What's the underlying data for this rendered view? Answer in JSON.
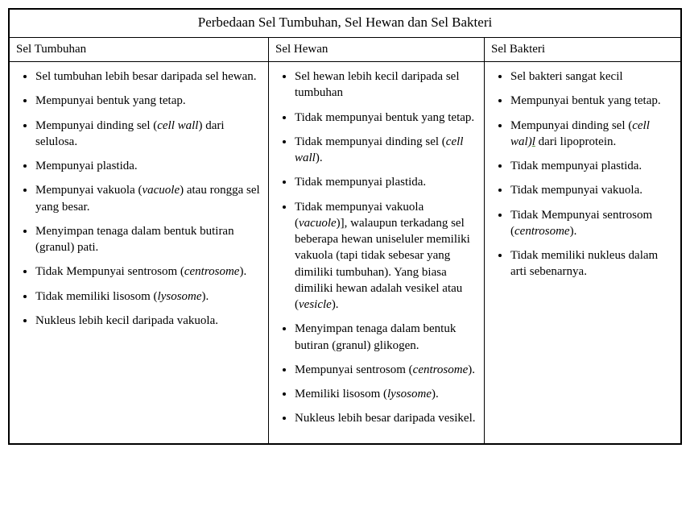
{
  "title": "Perbedaan Sel Tumbuhan, Sel Hewan dan Sel Bakteri",
  "columns": {
    "col1": {
      "header": "Sel Tumbuhan"
    },
    "col2": {
      "header": "Sel Hewan"
    },
    "col3": {
      "header": "Sel Bakteri"
    }
  },
  "list1": {
    "i0a": "Sel tumbuhan lebih besar daripada sel hewan.",
    "i1a": "Mempunyai bentuk yang tetap.",
    "i2a": "Mempunyai dinding sel (",
    "i2b": "cell wall",
    "i2c": ") dari selulosa.",
    "i3a": "Mempunyai plastida.",
    "i4a": "Mempunyai vakuola (",
    "i4b": "vacuole",
    "i4c": ") atau rongga sel yang besar.",
    "i5a": "Menyimpan tenaga dalam bentuk butiran (granul) pati.",
    "i6a": "Tidak Mempunyai sentrosom (",
    "i6b": "centrosome",
    "i6c": ").",
    "i7a": "Tidak memiliki lisosom (",
    "i7b": "lysosome",
    "i7c": ").",
    "i8a": "Nukleus lebih kecil daripada vakuola."
  },
  "list2": {
    "i0a": "Sel hewan lebih kecil daripada sel tumbuhan",
    "i1a": "Tidak mempunyai bentuk yang tetap.",
    "i2a": "Tidak mempunyai dinding sel (",
    "i2b": "cell wall",
    "i2c": ").",
    "i3a": "Tidak mempunyai plastida.",
    "i4a": "Tidak mempunyai vakuola (",
    "i4b": "vacuole",
    "i4c": ")], walaupun terkadang sel beberapa hewan uniseluler memiliki vakuola (tapi tidak sebesar yang dimiliki tumbuhan). Yang biasa dimiliki hewan adalah vesikel atau (",
    "i4d": "vesicle",
    "i4e": ").",
    "i5a": "Menyimpan tenaga dalam bentuk butiran (granul) glikogen.",
    "i6a": "Mempunyai sentrosom (",
    "i6b": "centrosome",
    "i6c": ").",
    "i7a": "Memiliki lisosom (",
    "i7b": "lysosome",
    "i7c": ").",
    "i8a": "Nukleus lebih besar daripada vesikel."
  },
  "list3": {
    "i0a": "Sel bakteri sangat kecil",
    "i1a": "Mempunyai bentuk yang tetap.",
    "i2a": "Mempunyai dinding sel (",
    "i2b": "cell wal",
    "i2c": ")",
    "i2d": "l",
    "i2e": " dari lipoprotein.",
    "i3a": "Tidak mempunyai plastida.",
    "i4a": "Tidak mempunyai vakuola.",
    "i5a": "Tidak Mempunyai sentrosom (",
    "i5b": "centrosome",
    "i5c": ").",
    "i6a": "Tidak memiliki nukleus dalam arti sebenarnya."
  }
}
